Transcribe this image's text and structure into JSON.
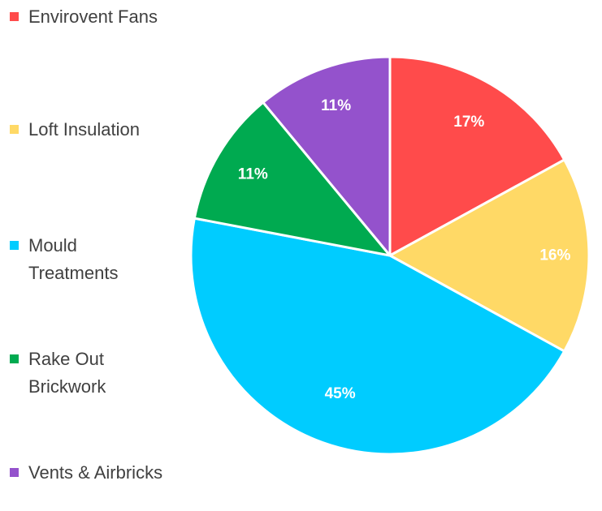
{
  "chart_data": {
    "type": "pie",
    "title": "",
    "start_angle_deg": 0,
    "direction": "clockwise",
    "legend_position": "left",
    "slices": [
      {
        "name": "Envirovent Fans",
        "value": 17,
        "label": "17%",
        "color": "#FF4B4B"
      },
      {
        "name": "Loft Insulation",
        "value": 16,
        "label": "16%",
        "color": "#FFD966"
      },
      {
        "name": "Mould Treatments",
        "value": 45,
        "label": "45%",
        "color": "#00CCFF"
      },
      {
        "name": "Rake Out Brickwork",
        "value": 11,
        "label": "11%",
        "color": "#00AA50"
      },
      {
        "name": "Vents & Airbricks",
        "value": 11,
        "label": "11%",
        "color": "#9452CC"
      }
    ]
  }
}
